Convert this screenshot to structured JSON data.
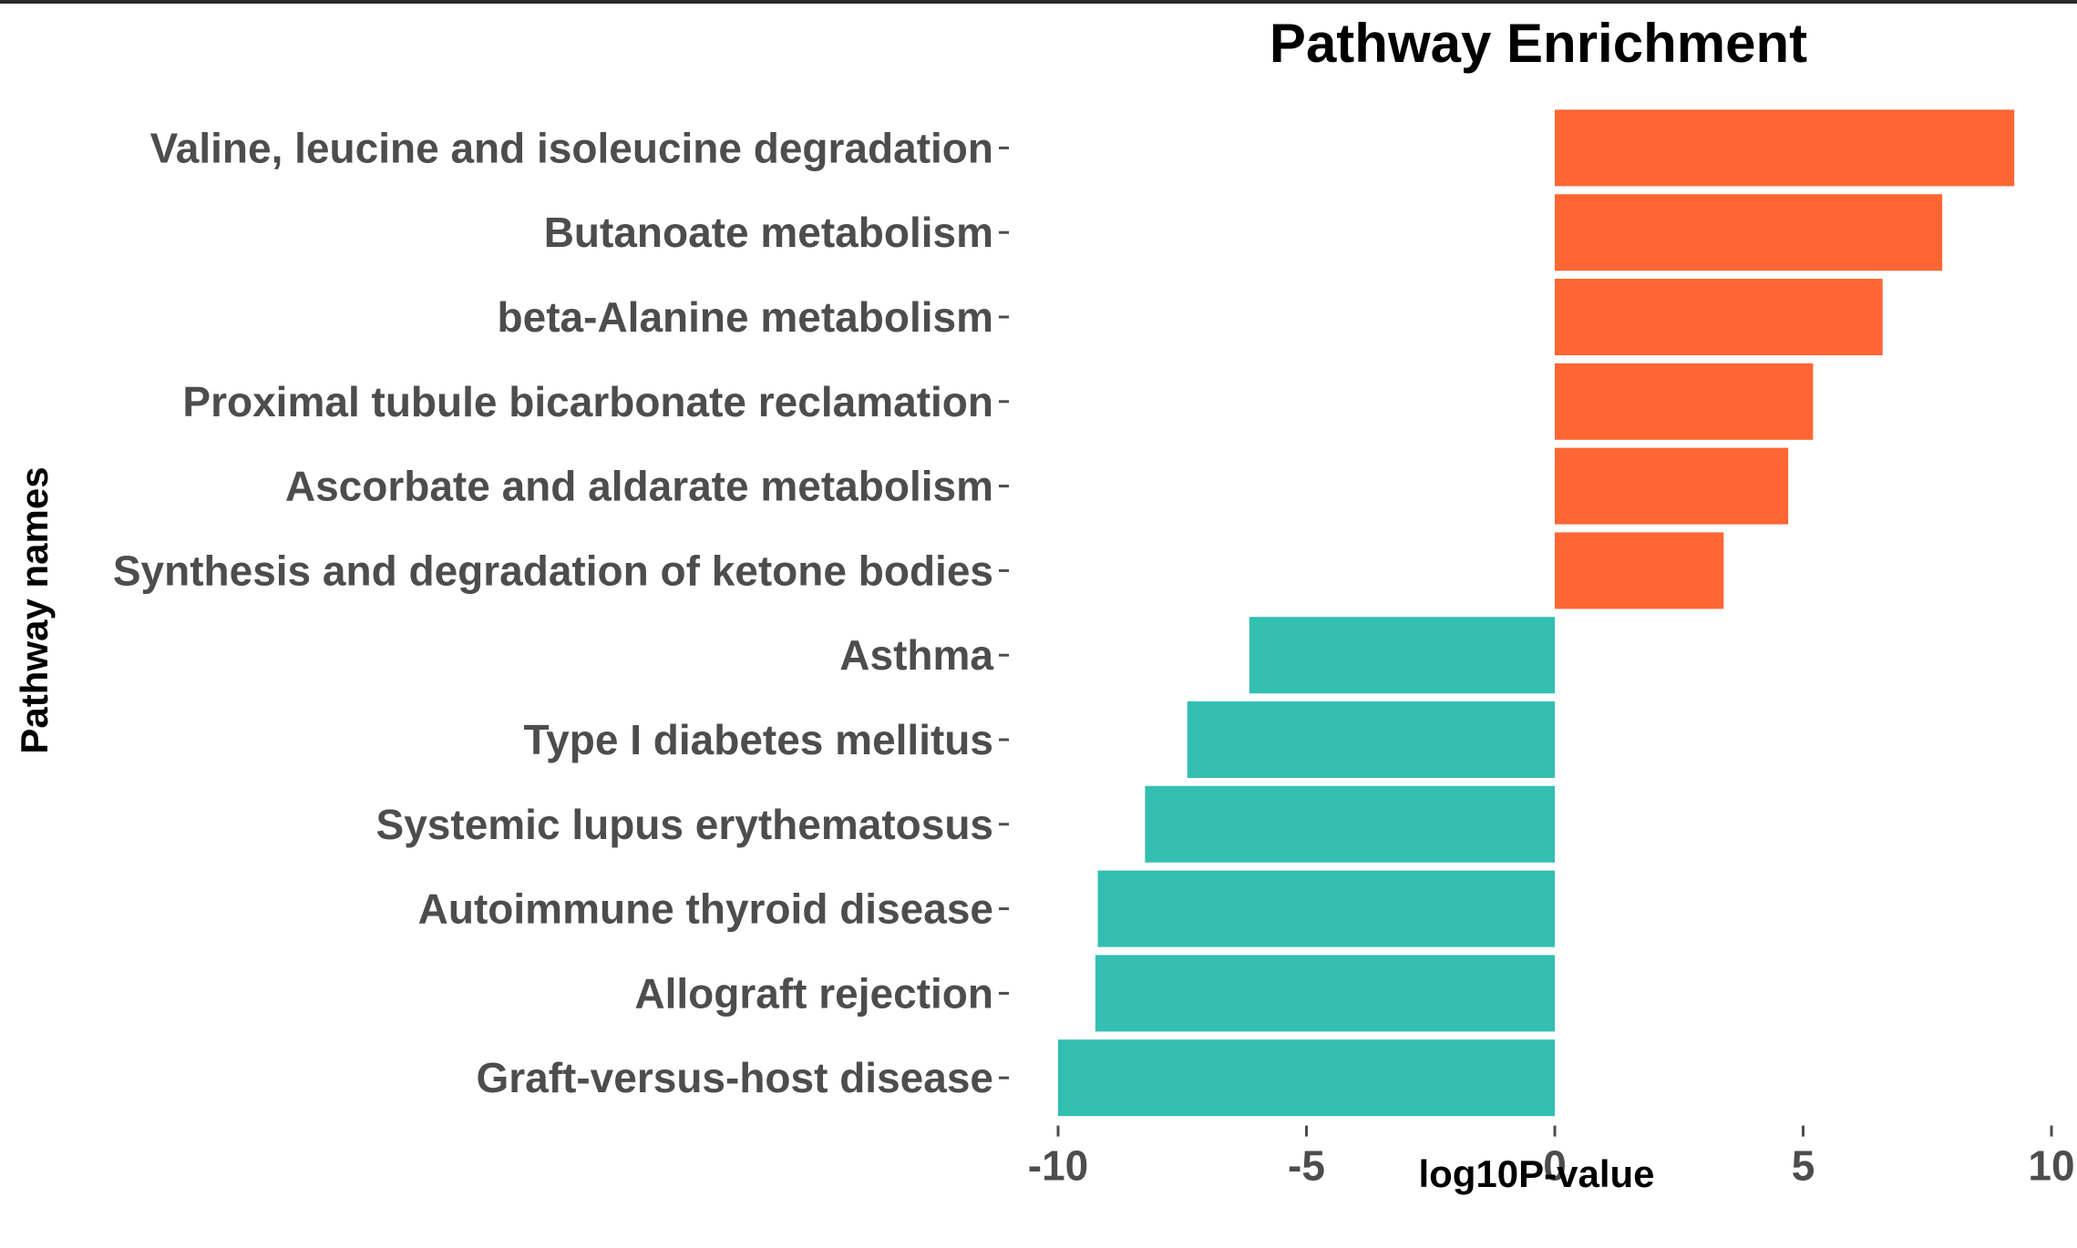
{
  "chart_data": {
    "type": "bar",
    "orientation": "horizontal",
    "title": "Pathway Enrichment",
    "xlabel": "log10P-value",
    "ylabel": "Pathway names",
    "xlim": [
      -10,
      10
    ],
    "x_ticks": [
      "-10",
      "-5",
      "0",
      "5",
      "10"
    ],
    "grid": false,
    "legend": "none",
    "categories": [
      "Valine, leucine and isoleucine degradation",
      "Butanoate metabolism",
      "beta-Alanine metabolism",
      "Proximal tubule bicarbonate reclamation",
      "Ascorbate and aldarate metabolism",
      "Synthesis and degradation of ketone bodies",
      "Asthma",
      "Type I diabetes mellitus",
      "Systemic lupus erythematosus",
      "Autoimmune thyroid disease",
      "Allograft rejection",
      "Graft-versus-host disease"
    ],
    "values": [
      9.25,
      7.8,
      6.6,
      5.2,
      4.7,
      3.4,
      -6.15,
      -7.4,
      -8.25,
      -9.2,
      -9.25,
      -10.0
    ],
    "colors": {
      "positive": "#FF6633",
      "negative": "#33BFB2"
    }
  }
}
